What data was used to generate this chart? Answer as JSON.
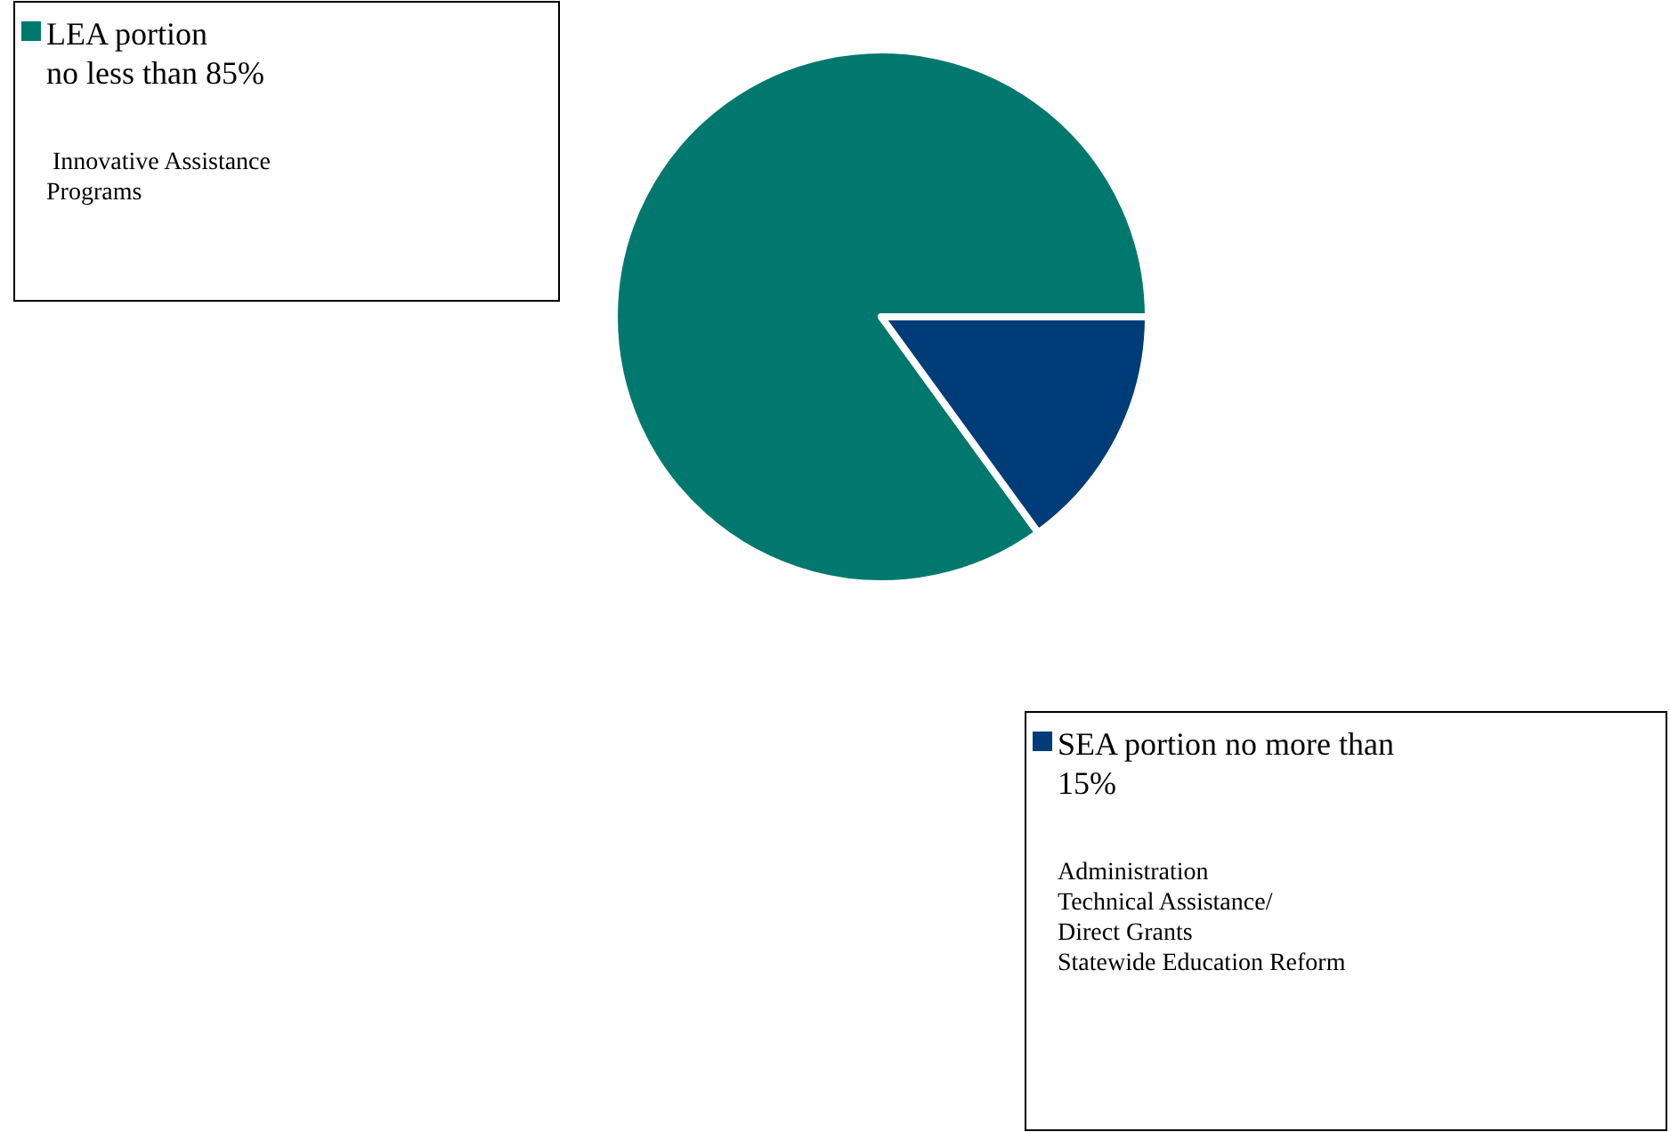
{
  "chart_data": {
    "type": "pie",
    "categories": [
      "LEA portion\nno less than 85%",
      "SEA portion no more than\n15%"
    ],
    "values": [
      85,
      15
    ],
    "colors": [
      "#00786e",
      "#003c78"
    ],
    "legend": "bottom left",
    "annotations": [
      " Innovative Assistance\nPrograms",
      "Administration\nTechnical Assistance/\nDirect Grants\nStatewide Education Reform"
    ]
  }
}
